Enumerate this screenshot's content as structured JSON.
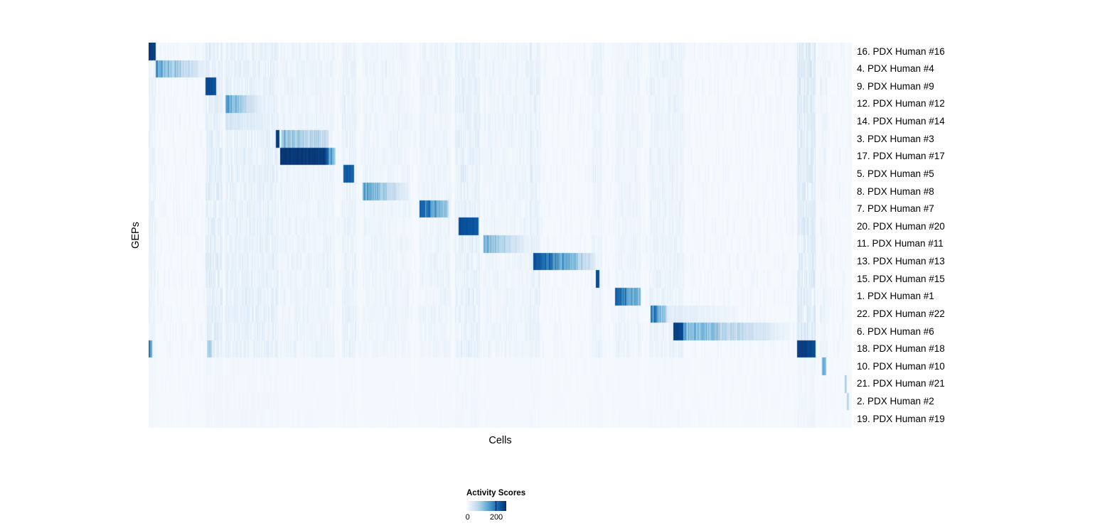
{
  "chart_data": {
    "type": "heatmap",
    "title": "",
    "xlabel": "Cells",
    "ylabel": "GEPs",
    "grid": false,
    "colormap": "Blues",
    "colormap_stops": [
      "#f7fbff",
      "#deebf7",
      "#c6dbef",
      "#9ecae1",
      "#6baed6",
      "#4292c6",
      "#2171b5",
      "#08519c",
      "#08306b"
    ],
    "legend": {
      "title": "Activity Scores",
      "position": "bottom-center",
      "tick_labels": [
        "0",
        "200"
      ],
      "tick_positions": [
        0.03,
        0.75
      ]
    },
    "texture": {
      "base": 0.015,
      "sparse_streak_prob": 0.25,
      "sparse_streak_amp": 0.05
    },
    "streak_bands": [
      [
        0.0,
        0.01,
        0.08
      ],
      [
        0.08,
        0.105,
        0.13
      ],
      [
        0.109,
        0.185,
        0.1
      ],
      [
        0.187,
        0.265,
        0.05
      ],
      [
        0.275,
        0.295,
        0.08
      ],
      [
        0.304,
        0.372,
        0.04
      ],
      [
        0.385,
        0.43,
        0.05
      ],
      [
        0.436,
        0.471,
        0.1
      ],
      [
        0.476,
        0.545,
        0.04
      ],
      [
        0.542,
        0.557,
        0.08
      ],
      [
        0.63,
        0.645,
        0.06
      ],
      [
        0.663,
        0.7,
        0.04
      ],
      [
        0.712,
        0.762,
        0.06
      ],
      [
        0.923,
        0.949,
        0.16
      ],
      [
        0.955,
        0.965,
        0.05
      ]
    ],
    "rows": [
      {
        "label": "16. PDX Human #16",
        "segments": [
          [
            0.0,
            0.01,
            0.95,
            0.95
          ]
        ]
      },
      {
        "label": "4. PDX Human #4",
        "segments": [
          [
            0.01,
            0.084,
            0.55,
            0.05
          ]
        ]
      },
      {
        "label": "9. PDX Human #9",
        "segments": [
          [
            0.08,
            0.096,
            0.9,
            0.88
          ]
        ]
      },
      {
        "label": "12. PDX Human #12",
        "segments": [
          [
            0.109,
            0.161,
            0.55,
            0.06
          ]
        ]
      },
      {
        "label": "14. PDX Human #14",
        "segments": [
          [
            0.109,
            0.185,
            0.18,
            0.04
          ]
        ]
      },
      {
        "label": "3. PDX Human #3",
        "segments": [
          [
            0.181,
            0.186,
            0.95,
            0.95
          ],
          [
            0.189,
            0.256,
            0.42,
            0.22
          ]
        ]
      },
      {
        "label": "17. PDX Human #17",
        "segments": [
          [
            0.187,
            0.25,
            0.98,
            0.95
          ],
          [
            0.25,
            0.266,
            0.95,
            0.3
          ]
        ]
      },
      {
        "label": "5. PDX Human #5",
        "segments": [
          [
            0.277,
            0.292,
            0.85,
            0.8
          ]
        ]
      },
      {
        "label": "8. PDX Human #8",
        "segments": [
          [
            0.304,
            0.372,
            0.55,
            0.06
          ]
        ]
      },
      {
        "label": "7. PDX Human #7",
        "segments": [
          [
            0.385,
            0.427,
            0.85,
            0.3
          ]
        ]
      },
      {
        "label": "20. PDX Human #20",
        "segments": [
          [
            0.441,
            0.469,
            0.9,
            0.85
          ]
        ]
      },
      {
        "label": "11. PDX Human #11",
        "segments": [
          [
            0.476,
            0.543,
            0.45,
            0.05
          ]
        ]
      },
      {
        "label": "13. PDX Human #13",
        "segments": [
          [
            0.547,
            0.636,
            0.9,
            0.12
          ]
        ]
      },
      {
        "label": "15. PDX Human #15",
        "segments": [
          [
            0.636,
            0.641,
            0.9,
            0.9
          ]
        ]
      },
      {
        "label": "1. PDX Human #1",
        "segments": [
          [
            0.663,
            0.7,
            0.85,
            0.4
          ]
        ]
      },
      {
        "label": "22. PDX Human #22",
        "segments": [
          [
            0.714,
            0.737,
            0.8,
            0.3
          ],
          [
            0.737,
            0.84,
            0.12,
            0.03
          ]
        ]
      },
      {
        "label": "6. PDX Human #6",
        "segments": [
          [
            0.746,
            0.761,
            0.95,
            0.9
          ],
          [
            0.761,
            0.913,
            0.5,
            0.04
          ]
        ]
      },
      {
        "label": "18. PDX Human #18",
        "segments": [
          [
            0.0,
            0.005,
            0.6,
            0.6
          ],
          [
            0.082,
            0.09,
            0.35,
            0.35
          ],
          [
            0.923,
            0.949,
            0.95,
            0.9
          ]
        ]
      },
      {
        "label": "10. PDX Human #10",
        "segments": [
          [
            0.958,
            0.964,
            0.5,
            0.5
          ]
        ],
        "band_scale": 0.25
      },
      {
        "label": "21. PDX Human #21",
        "segments": [
          [
            0.99,
            0.993,
            0.3,
            0.3
          ]
        ],
        "band_scale": 0.25
      },
      {
        "label": "2. PDX Human #2",
        "segments": [
          [
            0.993,
            0.996,
            0.3,
            0.3
          ]
        ],
        "band_scale": 0.25
      },
      {
        "label": "19. PDX Human #19",
        "segments": [],
        "band_scale": 0.25
      }
    ]
  }
}
